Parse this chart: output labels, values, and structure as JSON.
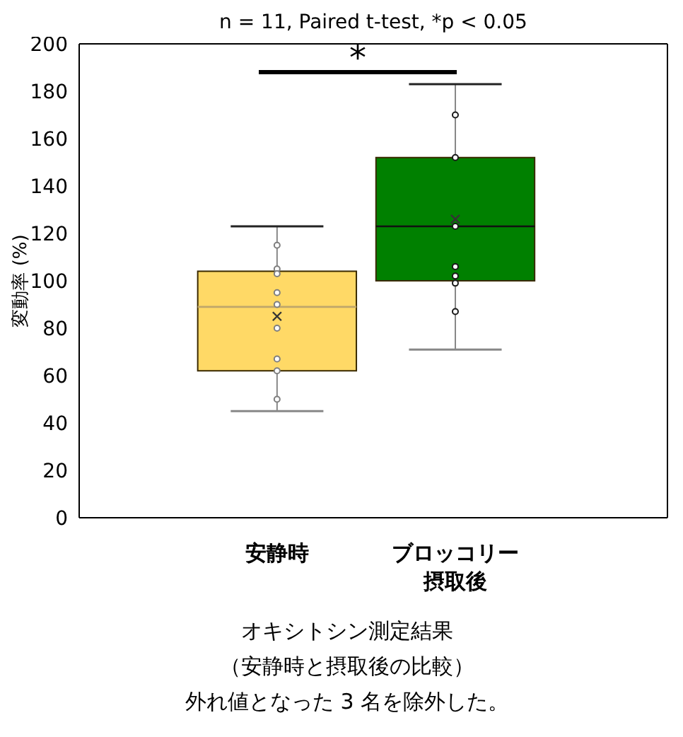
{
  "chart_data": {
    "type": "box",
    "title": "n = 11, Paired t-test, *p < 0.05",
    "ylabel": "変動率 (%)",
    "categories": [
      "安静時",
      "ブロッコリー摂取後"
    ],
    "colors": [
      "#ffd966",
      "#008000"
    ],
    "boxes": [
      {
        "low": 45,
        "q1": 62,
        "median": 89,
        "q3": 104,
        "high": 123,
        "mean": 85
      },
      {
        "low": 71,
        "q1": 100,
        "median": 123,
        "q3": 152,
        "high": 183,
        "mean": 126
      }
    ],
    "series": [
      {
        "type": "scatter",
        "color": "#7f7f7f",
        "x": [
          "安静時",
          "安静時",
          "安静時",
          "安静時",
          "安静時",
          "安静時",
          "安静時",
          "安静時",
          "安静時"
        ],
        "values": [
          115,
          105,
          103,
          95,
          90,
          80,
          67,
          62,
          50
        ]
      },
      {
        "type": "scatter",
        "color": "#1a1a1a",
        "x": [
          "ブロッコリー摂取後",
          "ブロッコリー摂取後",
          "ブロッコリー摂取後",
          "ブロッコリー摂取後",
          "ブロッコリー摂取後",
          "ブロッコリー摂取後",
          "ブロッコリー摂取後"
        ],
        "values": [
          170,
          152,
          123,
          106,
          102,
          99,
          87
        ]
      }
    ],
    "marker": "circle",
    "ylim": [
      0,
      200
    ],
    "yticks": [
      0,
      20,
      40,
      60,
      80,
      100,
      120,
      140,
      160,
      180,
      200
    ],
    "annotations": [
      "*",
      "オキシトシン測定結果",
      "（安静時と摂取後の比較）",
      "外れ値となった 3 名を除外した。"
    ]
  }
}
